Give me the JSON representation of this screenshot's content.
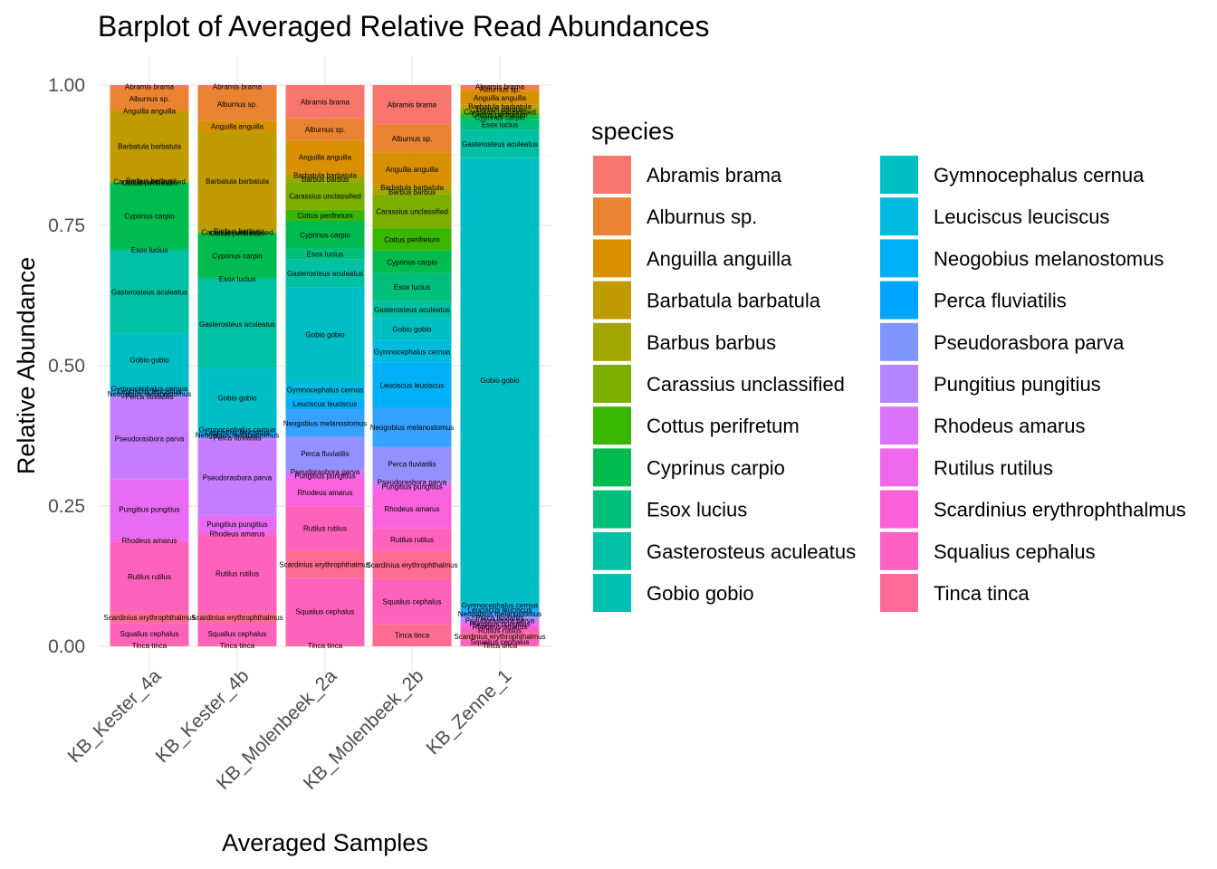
{
  "chart_data": {
    "type": "bar",
    "stacked": true,
    "title": "Barplot of Averaged Relative Read Abundances",
    "xlabel": "Averaged Samples",
    "ylabel": "Relative Abundance",
    "ylim": [
      0,
      1
    ],
    "yticks": [
      "0.00",
      "0.25",
      "0.50",
      "0.75",
      "1.00"
    ],
    "grid": true,
    "legend_position": "right",
    "legend_title": "species",
    "categories": [
      "KB_Kester_4a",
      "KB_Kester_4b",
      "KB_Molenbeek_2a",
      "KB_Molenbeek_2b",
      "KB_Zenne_1"
    ],
    "series": [
      {
        "name": "Abramis brama",
        "color": "#F8766D",
        "values": [
          0.005,
          0.005,
          0.06,
          0.07,
          0.005
        ]
      },
      {
        "name": "Alburnus sp.",
        "color": "#EA8331",
        "values": [
          0.04,
          0.06,
          0.04,
          0.05,
          0.005
        ]
      },
      {
        "name": "Anguilla anguilla",
        "color": "#D89000",
        "values": [
          0.005,
          0.02,
          0.06,
          0.06,
          0.025
        ]
      },
      {
        "name": "Barbatula barbatula",
        "color": "#C09B00",
        "values": [
          0.125,
          0.18,
          0.005,
          0.005,
          0.005
        ]
      },
      {
        "name": "Barbus barbus",
        "color": "#A3A500",
        "values": [
          0.002,
          0.002,
          0.01,
          0.01,
          0.005
        ]
      },
      {
        "name": "Carassius unclassified",
        "color": "#7CAE00",
        "values": [
          0.002,
          0.002,
          0.05,
          0.06,
          0.005
        ]
      },
      {
        "name": "Cottus perifretum",
        "color": "#39B600",
        "values": [
          0.002,
          0.002,
          0.02,
          0.04,
          0.005
        ]
      },
      {
        "name": "Cyprinus carpio",
        "color": "#00BB4E",
        "values": [
          0.12,
          0.08,
          0.05,
          0.04,
          0.005
        ]
      },
      {
        "name": "Esox lucius",
        "color": "#00BF7D",
        "values": [
          0.005,
          0.005,
          0.02,
          0.05,
          0.02
        ]
      },
      {
        "name": "Gasterosteus aculeatus",
        "color": "#00C1A3",
        "values": [
          0.15,
          0.16,
          0.05,
          0.03,
          0.05
        ]
      },
      {
        "name": "Gobio gobio",
        "color": "#00BFC4",
        "values": [
          0.1,
          0.11,
          0.17,
          0.04,
          0.79
        ]
      },
      {
        "name": "Gymnocephalus cernua",
        "color": "#00BAE0",
        "values": [
          0.005,
          0.005,
          0.03,
          0.04,
          0.01
        ]
      },
      {
        "name": "Leuciscus leuciscus",
        "color": "#00B0F6",
        "values": [
          0.005,
          0.005,
          0.02,
          0.08,
          0.005
        ]
      },
      {
        "name": "Neogobius melanostomus",
        "color": "#35A2FF",
        "values": [
          0.005,
          0.005,
          0.05,
          0.07,
          0.01
        ]
      },
      {
        "name": "Perca fluviatilis",
        "color": "#9590FF",
        "values": [
          0.005,
          0.005,
          0.06,
          0.06,
          0.005
        ]
      },
      {
        "name": "Pseudorasbora parva",
        "color": "#C77CFF",
        "values": [
          0.15,
          0.14,
          0.005,
          0.005,
          0.005
        ]
      },
      {
        "name": "Pungitius pungitius",
        "color": "#E76BF3",
        "values": [
          0.11,
          0.03,
          0.01,
          0.01,
          0.005
        ]
      },
      {
        "name": "Rhodeus amarus",
        "color": "#FA62DB",
        "values": [
          0.005,
          0.005,
          0.05,
          0.07,
          0.005
        ]
      },
      {
        "name": "Rutilus rutilus",
        "color": "#FF62BC",
        "values": [
          0.13,
          0.14,
          0.08,
          0.04,
          0.01
        ]
      },
      {
        "name": "Scardinius erythrophthalmus",
        "color": "#FF6C91",
        "values": [
          0.02,
          0.02,
          0.05,
          0.05,
          0.01
        ]
      },
      {
        "name": "Squalius cephalus",
        "color": "#FF62BC",
        "values": [
          0.04,
          0.04,
          0.12,
          0.08,
          0.01
        ]
      },
      {
        "name": "Tinca tinca",
        "color": "#FF6C91",
        "values": [
          0.003,
          0.003,
          0.003,
          0.04,
          0.003
        ]
      }
    ]
  },
  "legend_colors": [
    "#F8766D",
    "#EA8331",
    "#D89000",
    "#C09B00",
    "#A3A500",
    "#7CAE00",
    "#39B600",
    "#00BB4E",
    "#00BF7D",
    "#00C1A3",
    "#00C0B1",
    "#00BFC4",
    "#00BAE0",
    "#00B0F6",
    "#00A5FF",
    "#7F96FF",
    "#B385FF",
    "#DC71FA",
    "#EF67EB",
    "#FB61D7",
    "#FF61C3",
    "#FF6A98"
  ]
}
